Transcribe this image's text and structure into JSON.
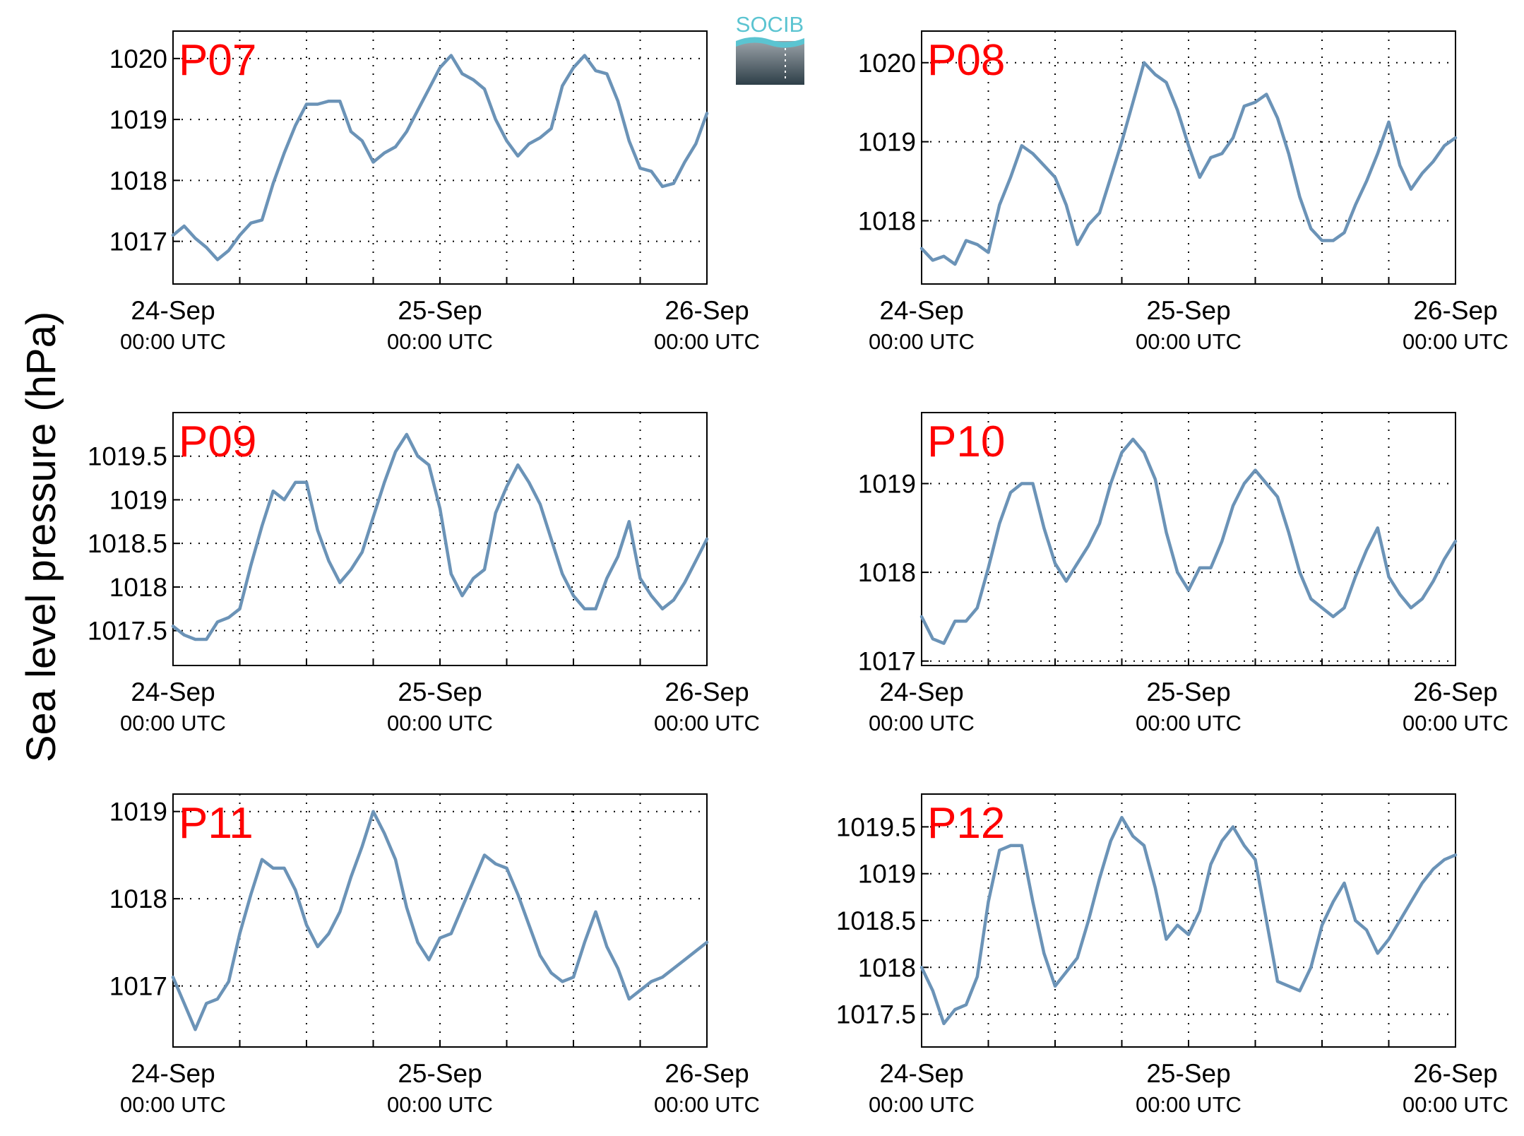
{
  "ylabel": "Sea level pressure (hPa)",
  "logo": {
    "text": "SOCIB",
    "text_color": "#5bc4d1",
    "fill_top": "#9aa2a8",
    "fill_bottom": "#2e3f48",
    "icon": "socib-logo-icon"
  },
  "colors": {
    "line": "#6b93b7",
    "label": "#ff0000",
    "axis": "#000000"
  },
  "chart_data": [
    {
      "type": "line",
      "label": "P07",
      "x_ticks": [
        {
          "date": "24-Sep",
          "time": "00:00 UTC"
        },
        {
          "date": "25-Sep",
          "time": "00:00 UTC"
        },
        {
          "date": "26-Sep",
          "time": "00:00 UTC"
        }
      ],
      "xlim": [
        "24-Sep 00:00",
        "26-Sep 00:00"
      ],
      "ylim": [
        1016.3,
        1020.45
      ],
      "y_ticks": [
        1017,
        1018,
        1019,
        1020
      ],
      "y_tick_labels": [
        "1017",
        "1018",
        "1019",
        "1020"
      ],
      "x_hours": [
        0,
        1,
        2,
        3,
        4,
        5,
        6,
        7,
        8,
        9,
        10,
        11,
        12,
        13,
        14,
        15,
        16,
        17,
        18,
        19,
        20,
        21,
        22,
        23,
        24,
        25,
        26,
        27,
        28,
        29,
        30,
        31,
        32,
        33,
        34,
        35,
        36,
        37,
        38,
        39,
        40,
        41,
        42,
        43,
        44,
        45,
        46,
        47,
        48
      ],
      "values": [
        1017.1,
        1017.25,
        1017.05,
        1016.9,
        1016.7,
        1016.85,
        1017.1,
        1017.3,
        1017.35,
        1017.95,
        1018.45,
        1018.9,
        1019.25,
        1019.25,
        1019.3,
        1019.3,
        1018.8,
        1018.65,
        1018.3,
        1018.45,
        1018.55,
        1018.8,
        1019.15,
        1019.5,
        1019.85,
        1020.05,
        1019.75,
        1019.65,
        1019.5,
        1019.0,
        1018.65,
        1018.4,
        1018.6,
        1018.7,
        1018.85,
        1019.55,
        1019.85,
        1020.05,
        1019.8,
        1019.75,
        1019.3,
        1018.65,
        1018.2,
        1018.15,
        1017.9,
        1017.95,
        1018.3,
        1018.6,
        1019.1
      ]
    },
    {
      "type": "line",
      "label": "P08",
      "x_ticks": [
        {
          "date": "24-Sep",
          "time": "00:00 UTC"
        },
        {
          "date": "25-Sep",
          "time": "00:00 UTC"
        },
        {
          "date": "26-Sep",
          "time": "00:00 UTC"
        }
      ],
      "xlim": [
        "24-Sep 00:00",
        "26-Sep 00:00"
      ],
      "ylim": [
        1017.2,
        1020.4
      ],
      "y_ticks": [
        1018,
        1019,
        1020
      ],
      "y_tick_labels": [
        "1018",
        "1019",
        "1020"
      ],
      "x_hours": [
        0,
        1,
        2,
        3,
        4,
        5,
        6,
        7,
        8,
        9,
        10,
        11,
        12,
        13,
        14,
        15,
        16,
        17,
        18,
        19,
        20,
        21,
        22,
        23,
        24,
        25,
        26,
        27,
        28,
        29,
        30,
        31,
        32,
        33,
        34,
        35,
        36,
        37,
        38,
        39,
        40,
        41,
        42,
        43,
        44,
        45,
        46,
        47,
        48
      ],
      "values": [
        1017.65,
        1017.5,
        1017.55,
        1017.45,
        1017.75,
        1017.7,
        1017.6,
        1018.2,
        1018.55,
        1018.95,
        1018.85,
        1018.7,
        1018.55,
        1018.2,
        1017.7,
        1017.95,
        1018.1,
        1018.55,
        1019.0,
        1019.5,
        1020.0,
        1019.85,
        1019.75,
        1019.4,
        1018.95,
        1018.55,
        1018.8,
        1018.85,
        1019.05,
        1019.45,
        1019.5,
        1019.6,
        1019.3,
        1018.85,
        1018.3,
        1017.9,
        1017.75,
        1017.75,
        1017.85,
        1018.2,
        1018.5,
        1018.85,
        1019.25,
        1018.7,
        1018.4,
        1018.6,
        1018.75,
        1018.95,
        1019.05
      ]
    },
    {
      "type": "line",
      "label": "P09",
      "x_ticks": [
        {
          "date": "24-Sep",
          "time": "00:00 UTC"
        },
        {
          "date": "25-Sep",
          "time": "00:00 UTC"
        },
        {
          "date": "26-Sep",
          "time": "00:00 UTC"
        }
      ],
      "xlim": [
        "24-Sep 00:00",
        "26-Sep 00:00"
      ],
      "ylim": [
        1017.1,
        1020.0
      ],
      "y_ticks": [
        1017.5,
        1018,
        1018.5,
        1019,
        1019.5
      ],
      "y_tick_labels": [
        "1017.5",
        "1018",
        "1018.5",
        "1019",
        "1019.5"
      ],
      "x_hours": [
        0,
        1,
        2,
        3,
        4,
        5,
        6,
        7,
        8,
        9,
        10,
        11,
        12,
        13,
        14,
        15,
        16,
        17,
        18,
        19,
        20,
        21,
        22,
        23,
        24,
        25,
        26,
        27,
        28,
        29,
        30,
        31,
        32,
        33,
        34,
        35,
        36,
        37,
        38,
        39,
        40,
        41,
        42,
        43,
        44,
        45,
        46,
        47,
        48
      ],
      "values": [
        1017.55,
        1017.45,
        1017.4,
        1017.4,
        1017.6,
        1017.65,
        1017.75,
        1018.25,
        1018.7,
        1019.1,
        1019.0,
        1019.2,
        1019.2,
        1018.65,
        1018.3,
        1018.05,
        1018.2,
        1018.4,
        1018.8,
        1019.2,
        1019.55,
        1019.75,
        1019.5,
        1019.4,
        1018.9,
        1018.15,
        1017.9,
        1018.1,
        1018.2,
        1018.85,
        1019.15,
        1019.4,
        1019.2,
        1018.95,
        1018.55,
        1018.15,
        1017.9,
        1017.75,
        1017.75,
        1018.1,
        1018.35,
        1018.75,
        1018.1,
        1017.9,
        1017.75,
        1017.85,
        1018.05,
        1018.3,
        1018.55
      ]
    },
    {
      "type": "line",
      "label": "P10",
      "x_ticks": [
        {
          "date": "24-Sep",
          "time": "00:00 UTC"
        },
        {
          "date": "25-Sep",
          "time": "00:00 UTC"
        },
        {
          "date": "26-Sep",
          "time": "00:00 UTC"
        }
      ],
      "xlim": [
        "24-Sep 00:00",
        "26-Sep 00:00"
      ],
      "ylim": [
        1016.95,
        1019.8
      ],
      "y_ticks": [
        1017,
        1018,
        1019
      ],
      "y_tick_labels": [
        "1017",
        "1018",
        "1019"
      ],
      "x_hours": [
        0,
        1,
        2,
        3,
        4,
        5,
        6,
        7,
        8,
        9,
        10,
        11,
        12,
        13,
        14,
        15,
        16,
        17,
        18,
        19,
        20,
        21,
        22,
        23,
        24,
        25,
        26,
        27,
        28,
        29,
        30,
        31,
        32,
        33,
        34,
        35,
        36,
        37,
        38,
        39,
        40,
        41,
        42,
        43,
        44,
        45,
        46,
        47,
        48
      ],
      "values": [
        1017.5,
        1017.25,
        1017.2,
        1017.45,
        1017.45,
        1017.6,
        1018.05,
        1018.55,
        1018.9,
        1019.0,
        1019.0,
        1018.5,
        1018.1,
        1017.9,
        1018.1,
        1018.3,
        1018.55,
        1019.0,
        1019.35,
        1019.5,
        1019.35,
        1019.05,
        1018.45,
        1018.0,
        1017.8,
        1018.05,
        1018.05,
        1018.35,
        1018.75,
        1019.0,
        1019.15,
        1019.0,
        1018.85,
        1018.45,
        1018.0,
        1017.7,
        1017.6,
        1017.5,
        1017.6,
        1017.95,
        1018.25,
        1018.5,
        1017.95,
        1017.75,
        1017.6,
        1017.7,
        1017.9,
        1018.15,
        1018.35
      ]
    },
    {
      "type": "line",
      "label": "P11",
      "x_ticks": [
        {
          "date": "24-Sep",
          "time": "00:00 UTC"
        },
        {
          "date": "25-Sep",
          "time": "00:00 UTC"
        },
        {
          "date": "26-Sep",
          "time": "00:00 UTC"
        }
      ],
      "xlim": [
        "24-Sep 00:00",
        "26-Sep 00:00"
      ],
      "ylim": [
        1016.3,
        1019.2
      ],
      "y_ticks": [
        1017,
        1018,
        1019
      ],
      "y_tick_labels": [
        "1017",
        "1018",
        "1019"
      ],
      "x_hours": [
        0,
        1,
        2,
        3,
        4,
        5,
        6,
        7,
        8,
        9,
        10,
        11,
        12,
        13,
        14,
        15,
        16,
        17,
        18,
        19,
        20,
        21,
        22,
        23,
        24,
        25,
        26,
        27,
        28,
        29,
        30,
        31,
        32,
        33,
        34,
        35,
        36,
        37,
        38,
        39,
        40,
        41,
        42,
        43,
        44,
        45,
        46,
        47,
        48
      ],
      "values": [
        1017.1,
        1016.8,
        1016.5,
        1016.8,
        1016.85,
        1017.05,
        1017.6,
        1018.05,
        1018.45,
        1018.35,
        1018.35,
        1018.1,
        1017.7,
        1017.45,
        1017.6,
        1017.85,
        1018.25,
        1018.6,
        1019.0,
        1018.75,
        1018.45,
        1017.9,
        1017.5,
        1017.3,
        1017.55,
        1017.6,
        1017.9,
        1018.2,
        1018.5,
        1018.4,
        1018.35,
        1018.05,
        1017.7,
        1017.35,
        1017.15,
        1017.05,
        1017.1,
        1017.5,
        1017.85,
        1017.45,
        1017.2,
        1016.85,
        1016.95,
        1017.05,
        1017.1,
        1017.2,
        1017.3,
        1017.4,
        1017.5
      ]
    },
    {
      "type": "line",
      "label": "P12",
      "x_ticks": [
        {
          "date": "24-Sep",
          "time": "00:00 UTC"
        },
        {
          "date": "25-Sep",
          "time": "00:00 UTC"
        },
        {
          "date": "26-Sep",
          "time": "00:00 UTC"
        }
      ],
      "xlim": [
        "24-Sep 00:00",
        "26-Sep 00:00"
      ],
      "ylim": [
        1017.15,
        1019.85
      ],
      "y_ticks": [
        1017.5,
        1018,
        1018.5,
        1019,
        1019.5
      ],
      "y_tick_labels": [
        "1017.5",
        "1018",
        "1018.5",
        "1019",
        "1019.5"
      ],
      "x_hours": [
        0,
        1,
        2,
        3,
        4,
        5,
        6,
        7,
        8,
        9,
        10,
        11,
        12,
        13,
        14,
        15,
        16,
        17,
        18,
        19,
        20,
        21,
        22,
        23,
        24,
        25,
        26,
        27,
        28,
        29,
        30,
        31,
        32,
        33,
        34,
        35,
        36,
        37,
        38,
        39,
        40,
        41,
        42,
        43,
        44,
        45,
        46,
        47,
        48
      ],
      "values": [
        1018.0,
        1017.75,
        1017.4,
        1017.55,
        1017.6,
        1017.9,
        1018.7,
        1019.25,
        1019.3,
        1019.3,
        1018.7,
        1018.15,
        1017.8,
        1017.95,
        1018.1,
        1018.5,
        1018.95,
        1019.35,
        1019.6,
        1019.4,
        1019.3,
        1018.85,
        1018.3,
        1018.45,
        1018.35,
        1018.6,
        1019.1,
        1019.35,
        1019.5,
        1019.3,
        1019.15,
        1018.5,
        1017.85,
        1017.8,
        1017.75,
        1018.0,
        1018.45,
        1018.7,
        1018.9,
        1018.5,
        1018.4,
        1018.15,
        1018.3,
        1018.5,
        1018.7,
        1018.9,
        1019.05,
        1019.15,
        1019.2
      ]
    }
  ]
}
